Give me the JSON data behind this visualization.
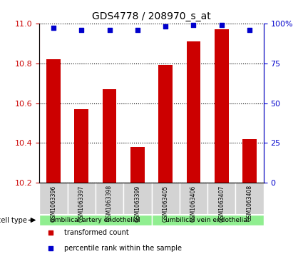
{
  "title": "GDS4778 / 208970_s_at",
  "samples": [
    "GSM1063396",
    "GSM1063397",
    "GSM1063398",
    "GSM1063399",
    "GSM1063405",
    "GSM1063406",
    "GSM1063407",
    "GSM1063408"
  ],
  "bar_values": [
    10.82,
    10.57,
    10.67,
    10.38,
    10.79,
    10.91,
    10.97,
    10.42
  ],
  "percentile_values": [
    97,
    96,
    96,
    96,
    98,
    99,
    99,
    96
  ],
  "ylim_left": [
    10.2,
    11.0
  ],
  "ylim_right": [
    0,
    100
  ],
  "yticks_left": [
    10.2,
    10.4,
    10.6,
    10.8,
    11.0
  ],
  "yticks_right": [
    0,
    25,
    50,
    75,
    100
  ],
  "bar_color": "#cc0000",
  "dot_color": "#0000cc",
  "grid_color": "#000000",
  "cell_type_groups": [
    {
      "label": "umbilical artery endothelial",
      "samples": [
        "GSM1063396",
        "GSM1063397",
        "GSM1063398",
        "GSM1063399"
      ]
    },
    {
      "label": "umbilical vein endothelial",
      "samples": [
        "GSM1063405",
        "GSM1063406",
        "GSM1063407",
        "GSM1063408"
      ]
    }
  ],
  "cell_type_bg": "#90ee90",
  "sample_bg": "#d3d3d3",
  "legend_items": [
    {
      "label": "transformed count",
      "color": "#cc0000",
      "marker": "s"
    },
    {
      "label": "percentile rank within the sample",
      "color": "#0000cc",
      "marker": "s"
    }
  ]
}
